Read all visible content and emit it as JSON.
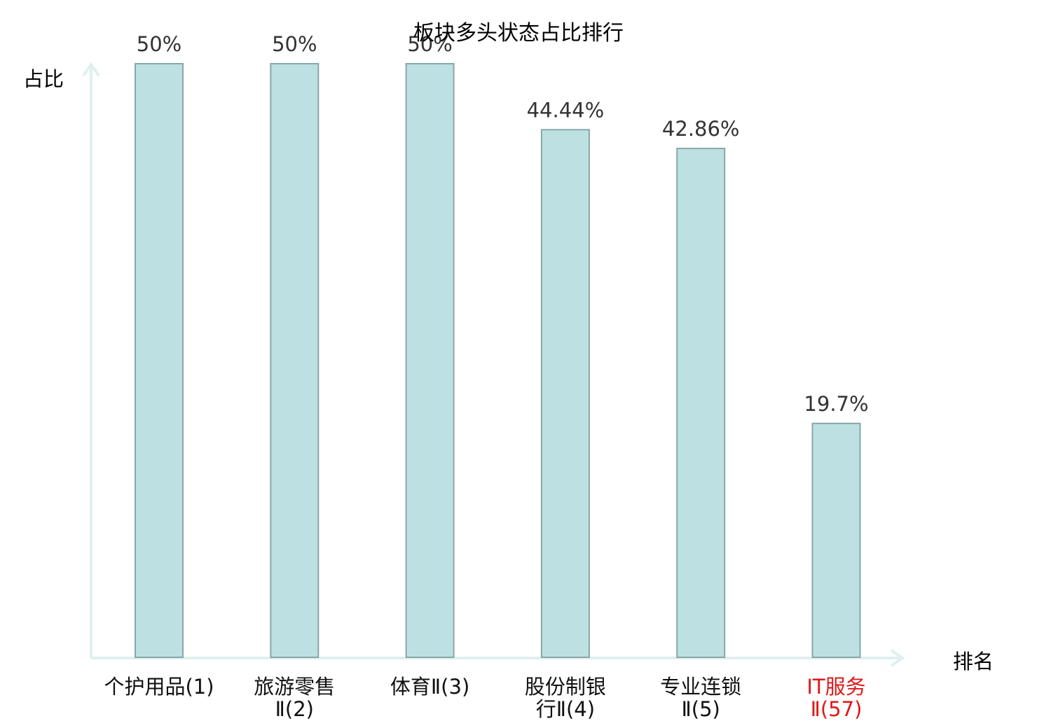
{
  "chart_data": {
    "type": "bar",
    "title": "板块多头状态占比排行",
    "ylabel": "占比",
    "xlabel": "排名",
    "ylim": [
      0,
      50
    ],
    "categories": [
      [
        "个护用品(1)"
      ],
      [
        "旅游零售",
        "Ⅱ(2)"
      ],
      [
        "体育Ⅱ(3)"
      ],
      [
        "股份制银",
        "行Ⅱ(4)"
      ],
      [
        "专业连锁",
        "Ⅱ(5)"
      ],
      [
        "IT服务",
        "Ⅱ(57)"
      ]
    ],
    "values": [
      50,
      50,
      50,
      44.44,
      42.86,
      19.7
    ],
    "value_labels": [
      "50%",
      "50%",
      "50%",
      "44.44%",
      "42.86%",
      "19.7%"
    ],
    "highlight_index": 5,
    "colors": {
      "bar": "#bde1e3",
      "bar_border": "#89a6a8",
      "axis": "#dff0ee",
      "highlight": "#e01818"
    }
  }
}
